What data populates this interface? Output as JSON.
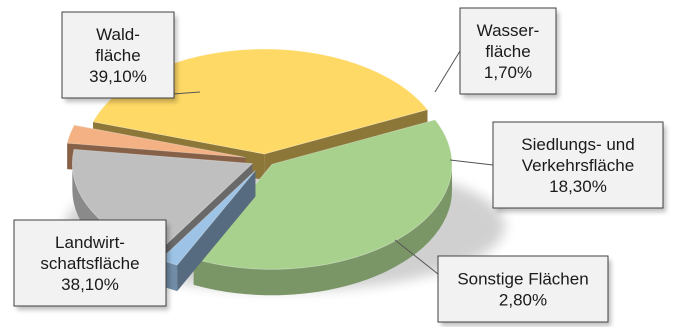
{
  "chart_data": {
    "type": "pie",
    "style": "3d-exploded",
    "title": "",
    "legend": "none",
    "slices": [
      {
        "lines": [
          "Wald-",
          "fläche",
          "39,10%"
        ],
        "value": 39.1,
        "color": "#a9d18e"
      },
      {
        "lines": [
          "Wasser-",
          "fläche",
          "1,70%"
        ],
        "value": 1.7,
        "color": "#9dc3e6"
      },
      {
        "lines": [
          "Siedlungs- und",
          "Verkehrsfläche",
          "18,30%"
        ],
        "value": 18.3,
        "color": "#bfbfbf"
      },
      {
        "lines": [
          "Sonstige Flächen",
          "2,80%"
        ],
        "value": 2.8,
        "color": "#f4b183"
      },
      {
        "lines": [
          "Landwirt-",
          "schaftsfläche",
          "38,10%"
        ],
        "value": 38.1,
        "color": "#ffd966"
      }
    ]
  }
}
